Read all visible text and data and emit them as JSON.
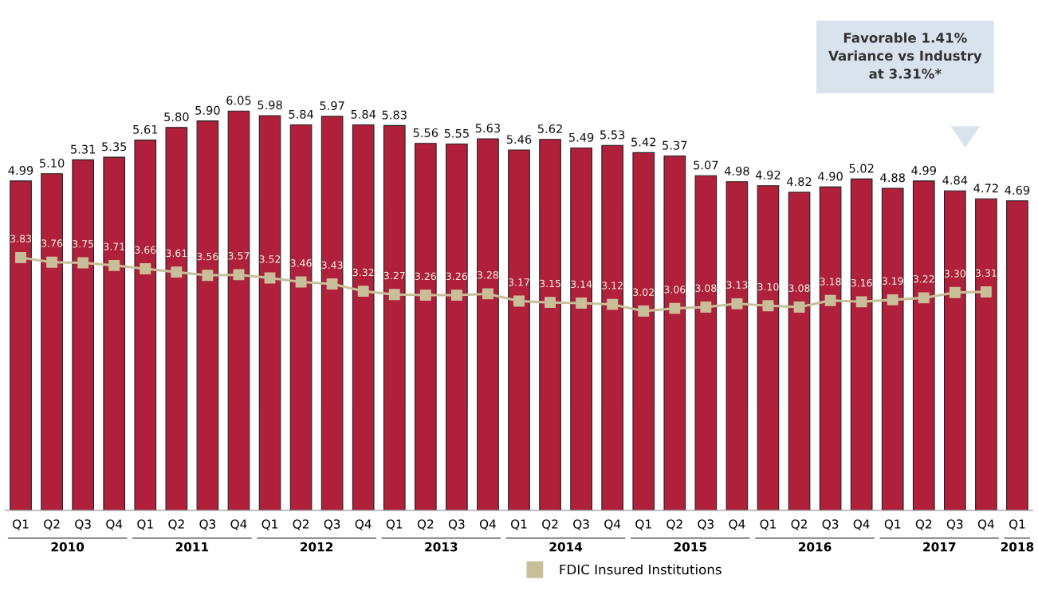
{
  "chart_data": {
    "type": "bar",
    "categories": [
      "Q1",
      "Q2",
      "Q3",
      "Q4",
      "Q1",
      "Q2",
      "Q3",
      "Q4",
      "Q1",
      "Q2",
      "Q3",
      "Q4",
      "Q1",
      "Q2",
      "Q3",
      "Q4",
      "Q1",
      "Q2",
      "Q3",
      "Q4",
      "Q1",
      "Q2",
      "Q3",
      "Q4",
      "Q1",
      "Q2",
      "Q3",
      "Q4",
      "Q1",
      "Q2",
      "Q3",
      "Q4",
      "Q1"
    ],
    "series": [
      {
        "color": "#b0203a",
        "values": [
          4.99,
          5.1,
          5.31,
          5.35,
          5.61,
          5.8,
          5.9,
          6.05,
          5.98,
          5.84,
          5.97,
          5.84,
          5.83,
          5.56,
          5.55,
          5.63,
          5.46,
          5.62,
          5.49,
          5.53,
          5.42,
          5.37,
          5.07,
          4.98,
          4.92,
          4.82,
          4.9,
          5.02,
          4.88,
          4.99,
          4.84,
          4.72,
          4.69
        ],
        "value_labels": [
          "4.99",
          "5.10",
          "5.31",
          "5.35",
          "5.61",
          "5.80",
          "5.90",
          "6.05",
          "5.98",
          "5.84",
          "5.97",
          "5.84",
          "5.83",
          "5.56",
          "5.55",
          "5.63",
          "5.46",
          "5.62",
          "5.49",
          "5.53",
          "5.42",
          "5.37",
          "5.07",
          "4.98",
          "4.92",
          "4.82",
          "4.90",
          "5.02",
          "4.88",
          "4.99",
          "4.84",
          "4.72",
          "4.69"
        ]
      },
      {
        "type": "line",
        "name": "FDIC Insured Institutions",
        "color": "#c8bf9a",
        "marker": "square",
        "values": [
          3.83,
          3.76,
          3.75,
          3.71,
          3.66,
          3.61,
          3.56,
          3.57,
          3.52,
          3.46,
          3.43,
          3.32,
          3.27,
          3.26,
          3.26,
          3.28,
          3.17,
          3.15,
          3.14,
          3.12,
          3.02,
          3.06,
          3.08,
          3.13,
          3.1,
          3.08,
          3.18,
          3.16,
          3.19,
          3.22,
          3.3,
          3.31,
          null
        ],
        "value_labels": [
          "3.83",
          "3.76",
          "3.75",
          "3.71",
          "3.66",
          "3.61",
          "3.56",
          "3.57",
          "3.52",
          "3.46",
          "3.43",
          "3.32",
          "3.27",
          "3.26",
          "3.26",
          "3.28",
          "3.17",
          "3.15",
          "3.14",
          "3.12",
          "3.02",
          "3.06",
          "3.08",
          "3.13",
          "3.10",
          "3.08",
          "3.18",
          "3.16",
          "3.19",
          "3.22",
          "3.30",
          "3.31",
          null
        ]
      }
    ],
    "tick_labels": "x",
    "grid": false,
    "legend": "bottom",
    "annotations": [
      "2010",
      "2011",
      "2012",
      "2013",
      "2014",
      "2015",
      "2016",
      "2017",
      "2018",
      "Favorable 1.41%\nVariance vs Industry\nat 3.31%*"
    ]
  }
}
